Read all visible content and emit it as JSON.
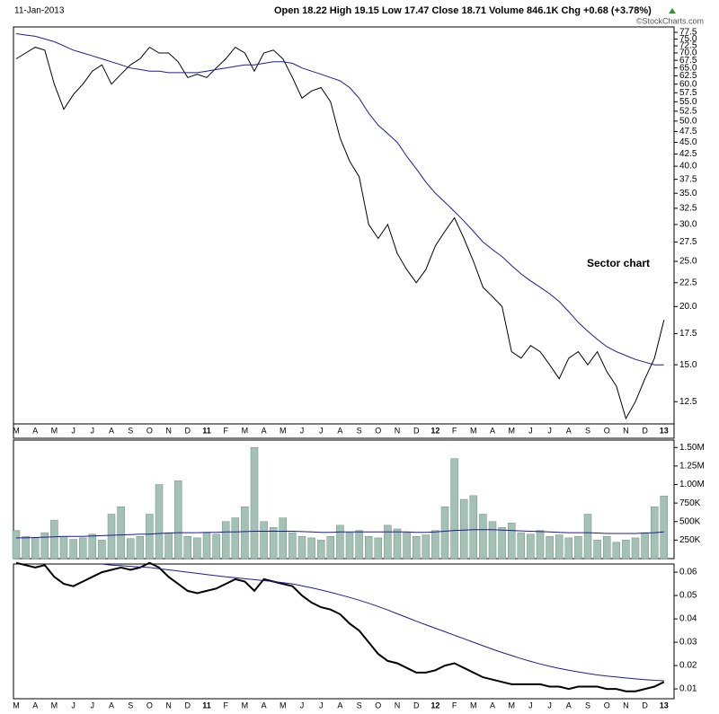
{
  "header": {
    "date": "11-Jan-2013",
    "quote": "Open 18.22 High 19.15 Low 17.47 Close 18.71 Volume 846.1K Chg +0.68 (+3.78%)",
    "watermark": "©StockCharts.com"
  },
  "chart_data": [
    {
      "type": "line",
      "log": true,
      "annotation": "Sector chart",
      "categories": [
        "M",
        null,
        "A",
        null,
        "M",
        null,
        "J",
        null,
        "J",
        null,
        "A",
        null,
        "S",
        null,
        "O",
        null,
        "N",
        null,
        "D",
        null,
        "11",
        null,
        "F",
        null,
        "M",
        null,
        "A",
        null,
        "M",
        null,
        "J",
        null,
        "J",
        null,
        "A",
        null,
        "S",
        null,
        "O",
        null,
        "N",
        null,
        "D",
        null,
        "12",
        null,
        "F",
        null,
        "M",
        null,
        "A",
        null,
        "M",
        null,
        "J",
        null,
        "J",
        null,
        "A",
        null,
        "S",
        null,
        "O",
        null,
        "N",
        null,
        "D",
        null,
        "13"
      ],
      "ylim": [
        11.2,
        79.6
      ],
      "yticks": [
        12.5,
        {
          "value": 15,
          "label": "15.0"
        },
        17.5,
        {
          "value": 20,
          "label": "20.0"
        },
        22.5,
        {
          "value": 25,
          "label": "25.0"
        },
        27.5,
        {
          "value": 30,
          "label": "30.0"
        },
        32.5,
        {
          "value": 35,
          "label": "35.0"
        },
        37.5,
        {
          "value": 40,
          "label": "40.0"
        },
        42.5,
        {
          "value": 45,
          "label": "45.0"
        },
        47.5,
        {
          "value": 50,
          "label": "50.0"
        },
        52.5,
        {
          "value": 55,
          "label": "55.0"
        },
        57.5,
        {
          "value": 60,
          "label": "60.0"
        },
        62.5,
        {
          "value": 65,
          "label": "65.0"
        },
        67.5,
        {
          "value": 70,
          "label": "70.0"
        },
        72.5,
        {
          "value": 75,
          "label": "75.0"
        },
        77.5
      ],
      "series": [
        {
          "color": "#000000",
          "values": [
            68,
            70,
            72,
            71,
            60,
            53,
            57,
            60,
            64,
            66,
            60,
            63,
            66,
            68,
            72,
            70,
            70,
            67,
            62,
            63,
            62,
            65,
            68,
            72,
            70,
            64,
            70,
            71,
            68,
            62,
            56,
            58,
            59,
            55,
            46,
            41,
            38,
            30,
            28,
            30,
            26,
            24,
            22.5,
            24,
            27,
            29,
            31,
            28,
            25,
            22,
            21,
            20,
            16,
            15.5,
            16.5,
            16,
            15,
            14,
            15.5,
            16,
            15,
            16,
            14.5,
            13.5,
            11.5,
            12.5,
            14,
            15.5,
            18.71
          ]
        },
        {
          "color": "#1c1c96",
          "values": [
            77,
            76.5,
            76,
            75,
            74,
            72.5,
            71,
            70,
            69,
            68,
            67,
            66,
            65,
            64.5,
            64,
            64,
            63.5,
            63.5,
            63.5,
            63.5,
            64,
            64.5,
            65,
            65.5,
            66,
            66,
            66.5,
            67,
            67,
            66.5,
            65,
            64,
            63,
            62,
            61,
            59,
            56,
            52,
            49,
            47,
            45,
            42,
            39.5,
            37,
            35,
            33.5,
            32,
            30.5,
            29,
            27.5,
            26.5,
            25.6,
            24.5,
            23.5,
            22.7,
            22,
            21.3,
            20.5,
            19.5,
            18.5,
            17.7,
            17,
            16.4,
            16,
            15.7,
            15.4,
            15.2,
            15,
            15
          ]
        }
      ]
    },
    {
      "type": "bar",
      "ylim": [
        0,
        1600000
      ],
      "yticks": [
        {
          "value": 250000,
          "label": "250K"
        },
        {
          "value": 500000,
          "label": "500K"
        },
        {
          "value": 750000,
          "label": "750K"
        },
        {
          "value": 1000000,
          "label": "1.00M"
        },
        {
          "value": 1250000,
          "label": "1.25M"
        },
        {
          "value": 1500000,
          "label": "1.50M"
        }
      ],
      "series": [
        {
          "color": "#a3c2b5",
          "values": [
            380000,
            300000,
            280000,
            350000,
            520000,
            300000,
            260000,
            280000,
            330000,
            250000,
            600000,
            700000,
            270000,
            300000,
            600000,
            1000000,
            350000,
            1050000,
            300000,
            280000,
            350000,
            330000,
            500000,
            550000,
            700000,
            1500000,
            500000,
            420000,
            550000,
            350000,
            300000,
            280000,
            250000,
            300000,
            450000,
            350000,
            380000,
            300000,
            280000,
            450000,
            400000,
            350000,
            300000,
            320000,
            380000,
            700000,
            1350000,
            800000,
            850000,
            600000,
            500000,
            420000,
            480000,
            350000,
            330000,
            380000,
            300000,
            320000,
            280000,
            300000,
            600000,
            250000,
            300000,
            220000,
            250000,
            280000,
            350000,
            700000,
            846100
          ]
        },
        {
          "type": "line",
          "color": "#1c1c96",
          "values": [
            280000,
            280000,
            285000,
            290000,
            295000,
            300000,
            300000,
            300000,
            305000,
            310000,
            315000,
            320000,
            325000,
            330000,
            330000,
            340000,
            345000,
            350000,
            350000,
            350000,
            355000,
            355000,
            360000,
            360000,
            365000,
            370000,
            370000,
            370000,
            370000,
            370000,
            365000,
            360000,
            355000,
            355000,
            360000,
            360000,
            360000,
            360000,
            360000,
            360000,
            360000,
            360000,
            355000,
            355000,
            360000,
            370000,
            380000,
            385000,
            390000,
            390000,
            390000,
            385000,
            380000,
            375000,
            370000,
            365000,
            360000,
            355000,
            350000,
            350000,
            350000,
            345000,
            340000,
            340000,
            340000,
            340000,
            345000,
            350000,
            360000
          ]
        }
      ]
    },
    {
      "type": "line",
      "categories": [
        "M",
        null,
        "A",
        null,
        "M",
        null,
        "J",
        null,
        "J",
        null,
        "A",
        null,
        "S",
        null,
        "O",
        null,
        "N",
        null,
        "D",
        null,
        "11",
        null,
        "F",
        null,
        "M",
        null,
        "A",
        null,
        "M",
        null,
        "J",
        null,
        "J",
        null,
        "A",
        null,
        "S",
        null,
        "O",
        null,
        "N",
        null,
        "D",
        null,
        "12",
        null,
        "F",
        null,
        "M",
        null,
        "A",
        null,
        "M",
        null,
        "J",
        null,
        "J",
        null,
        "A",
        null,
        "S",
        null,
        "O",
        null,
        "N",
        null,
        "D",
        null,
        "13"
      ],
      "ylim": [
        0.0058,
        0.0635
      ],
      "yticks": [
        0.01,
        0.02,
        0.03,
        0.04,
        0.05,
        0.06
      ],
      "series": [
        {
          "color": "#000000",
          "width": 2,
          "values": [
            0.064,
            0.063,
            0.062,
            0.063,
            0.058,
            0.055,
            0.054,
            0.056,
            0.058,
            0.06,
            0.061,
            0.062,
            0.061,
            0.062,
            0.064,
            0.062,
            0.058,
            0.055,
            0.052,
            0.051,
            0.052,
            0.053,
            0.055,
            0.057,
            0.056,
            0.052,
            0.057,
            0.056,
            0.055,
            0.054,
            0.05,
            0.047,
            0.045,
            0.044,
            0.042,
            0.038,
            0.035,
            0.03,
            0.025,
            0.022,
            0.021,
            0.019,
            0.017,
            0.017,
            0.018,
            0.02,
            0.021,
            0.019,
            0.017,
            0.015,
            0.014,
            0.013,
            0.012,
            0.012,
            0.012,
            0.012,
            0.011,
            0.011,
            0.01,
            0.011,
            0.011,
            0.011,
            0.01,
            0.01,
            0.009,
            0.009,
            0.01,
            0.011,
            0.013
          ]
        },
        {
          "color": "#1c1c96",
          "width": 1,
          "values": [
            null,
            null,
            null,
            null,
            null,
            null,
            null,
            null,
            null,
            0.0635,
            0.063,
            0.0628,
            0.0625,
            0.0622,
            0.062,
            0.0615,
            0.061,
            0.0605,
            0.06,
            0.0595,
            0.059,
            0.0585,
            0.058,
            0.0576,
            0.0572,
            0.0568,
            0.0564,
            0.056,
            0.0555,
            0.055,
            0.0542,
            0.0533,
            0.0524,
            0.0514,
            0.0503,
            0.0492,
            0.048,
            0.0467,
            0.0453,
            0.0438,
            0.0422,
            0.0406,
            0.039,
            0.0375,
            0.036,
            0.0345,
            0.033,
            0.0315,
            0.03,
            0.0285,
            0.027,
            0.0256,
            0.0243,
            0.023,
            0.0218,
            0.0207,
            0.0197,
            0.0188,
            0.018,
            0.0173,
            0.0166,
            0.016,
            0.0155,
            0.0151,
            0.0147,
            0.0143,
            0.014,
            0.0137,
            0.0135
          ]
        }
      ]
    }
  ]
}
